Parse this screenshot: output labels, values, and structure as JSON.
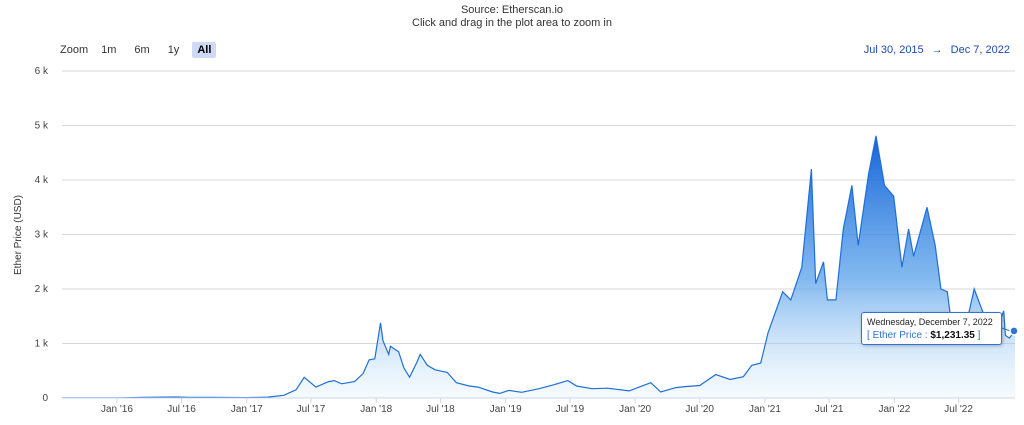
{
  "header": {
    "source": "Source: Etherscan.io",
    "hint": "Click and drag in the plot area to zoom in"
  },
  "range_selector": {
    "label": "Zoom",
    "buttons": [
      {
        "label": "1m",
        "active": false
      },
      {
        "label": "6m",
        "active": false
      },
      {
        "label": "1y",
        "active": false
      },
      {
        "label": "All",
        "active": true
      }
    ]
  },
  "date_range": {
    "from": "Jul 30, 2015",
    "arrow": "→",
    "to": "Dec 7, 2022"
  },
  "tooltip": {
    "date": "Wednesday, December 7, 2022",
    "open": "[",
    "series": "Ether Price",
    "sep": ":",
    "value": "$1,231.35",
    "close": "]"
  },
  "colors": {
    "line": "#1f6fd6",
    "grid": "#d8d8d8"
  },
  "chart_data": {
    "type": "area",
    "ylabel": "Ether Price (USD)",
    "ylim": [
      0,
      6000
    ],
    "y_ticks": [
      {
        "value": 0,
        "label": "0"
      },
      {
        "value": 1000,
        "label": "1 k"
      },
      {
        "value": 2000,
        "label": "2 k"
      },
      {
        "value": 3000,
        "label": "3 k"
      },
      {
        "value": 4000,
        "label": "4 k"
      },
      {
        "value": 5000,
        "label": "5 k"
      },
      {
        "value": 6000,
        "label": "6 k"
      }
    ],
    "xlim": [
      "2015-07-30",
      "2022-12-07"
    ],
    "x_ticks": [
      {
        "date": "2016-01-01",
        "label": "Jan '16"
      },
      {
        "date": "2016-07-01",
        "label": "Jul '16"
      },
      {
        "date": "2017-01-01",
        "label": "Jan '17"
      },
      {
        "date": "2017-07-01",
        "label": "Jul '17"
      },
      {
        "date": "2018-01-01",
        "label": "Jan '18"
      },
      {
        "date": "2018-07-01",
        "label": "Jul '18"
      },
      {
        "date": "2019-01-01",
        "label": "Jan '19"
      },
      {
        "date": "2019-07-01",
        "label": "Jul '19"
      },
      {
        "date": "2020-01-01",
        "label": "Jan '20"
      },
      {
        "date": "2020-07-01",
        "label": "Jul '20"
      },
      {
        "date": "2021-01-01",
        "label": "Jan '21"
      },
      {
        "date": "2021-07-01",
        "label": "Jul '21"
      },
      {
        "date": "2022-01-01",
        "label": "Jan '22"
      },
      {
        "date": "2022-07-01",
        "label": "Jul '22"
      }
    ],
    "series": [
      {
        "name": "Ether Price",
        "points": [
          [
            "2015-07-30",
            2
          ],
          [
            "2015-10-01",
            1
          ],
          [
            "2016-01-01",
            1
          ],
          [
            "2016-03-15",
            11
          ],
          [
            "2016-06-15",
            18
          ],
          [
            "2016-07-20",
            12
          ],
          [
            "2016-10-01",
            12
          ],
          [
            "2017-01-01",
            8
          ],
          [
            "2017-03-01",
            17
          ],
          [
            "2017-04-15",
            50
          ],
          [
            "2017-05-20",
            150
          ],
          [
            "2017-06-12",
            380
          ],
          [
            "2017-07-15",
            200
          ],
          [
            "2017-08-20",
            300
          ],
          [
            "2017-09-05",
            320
          ],
          [
            "2017-09-25",
            260
          ],
          [
            "2017-11-01",
            300
          ],
          [
            "2017-11-25",
            450
          ],
          [
            "2017-12-12",
            700
          ],
          [
            "2017-12-28",
            720
          ],
          [
            "2018-01-13",
            1380
          ],
          [
            "2018-01-20",
            1050
          ],
          [
            "2018-02-05",
            800
          ],
          [
            "2018-02-10",
            950
          ],
          [
            "2018-03-05",
            850
          ],
          [
            "2018-03-20",
            550
          ],
          [
            "2018-04-05",
            380
          ],
          [
            "2018-04-25",
            650
          ],
          [
            "2018-05-05",
            800
          ],
          [
            "2018-05-25",
            600
          ],
          [
            "2018-06-15",
            520
          ],
          [
            "2018-07-20",
            470
          ],
          [
            "2018-08-15",
            280
          ],
          [
            "2018-09-20",
            220
          ],
          [
            "2018-10-15",
            200
          ],
          [
            "2018-11-25",
            110
          ],
          [
            "2018-12-15",
            85
          ],
          [
            "2019-01-10",
            140
          ],
          [
            "2019-02-15",
            105
          ],
          [
            "2019-04-05",
            170
          ],
          [
            "2019-05-15",
            240
          ],
          [
            "2019-06-25",
            320
          ],
          [
            "2019-07-20",
            220
          ],
          [
            "2019-09-01",
            170
          ],
          [
            "2019-10-15",
            180
          ],
          [
            "2019-12-15",
            130
          ],
          [
            "2020-02-14",
            280
          ],
          [
            "2020-03-13",
            110
          ],
          [
            "2020-04-25",
            190
          ],
          [
            "2020-05-20",
            210
          ],
          [
            "2020-07-01",
            230
          ],
          [
            "2020-08-15",
            430
          ],
          [
            "2020-09-25",
            340
          ],
          [
            "2020-11-01",
            390
          ],
          [
            "2020-11-25",
            600
          ],
          [
            "2020-12-20",
            640
          ],
          [
            "2021-01-10",
            1200
          ],
          [
            "2021-02-20",
            1950
          ],
          [
            "2021-03-15",
            1800
          ],
          [
            "2021-04-15",
            2400
          ],
          [
            "2021-05-12",
            4200
          ],
          [
            "2021-05-24",
            2100
          ],
          [
            "2021-06-15",
            2500
          ],
          [
            "2021-06-26",
            1800
          ],
          [
            "2021-07-20",
            1800
          ],
          [
            "2021-08-10",
            3100
          ],
          [
            "2021-09-03",
            3900
          ],
          [
            "2021-09-21",
            2800
          ],
          [
            "2021-10-20",
            4100
          ],
          [
            "2021-11-10",
            4810
          ],
          [
            "2021-12-04",
            3900
          ],
          [
            "2021-12-30",
            3700
          ],
          [
            "2022-01-22",
            2400
          ],
          [
            "2022-02-10",
            3100
          ],
          [
            "2022-02-24",
            2600
          ],
          [
            "2022-04-03",
            3500
          ],
          [
            "2022-04-26",
            2800
          ],
          [
            "2022-05-12",
            2000
          ],
          [
            "2022-05-30",
            1950
          ],
          [
            "2022-06-18",
            1000
          ],
          [
            "2022-07-12",
            1050
          ],
          [
            "2022-08-14",
            2000
          ],
          [
            "2022-09-06",
            1600
          ],
          [
            "2022-09-21",
            1300
          ],
          [
            "2022-10-20",
            1300
          ],
          [
            "2022-11-05",
            1600
          ],
          [
            "2022-11-10",
            1150
          ],
          [
            "2022-11-21",
            1100
          ],
          [
            "2022-12-07",
            1231.35
          ]
        ]
      }
    ]
  }
}
